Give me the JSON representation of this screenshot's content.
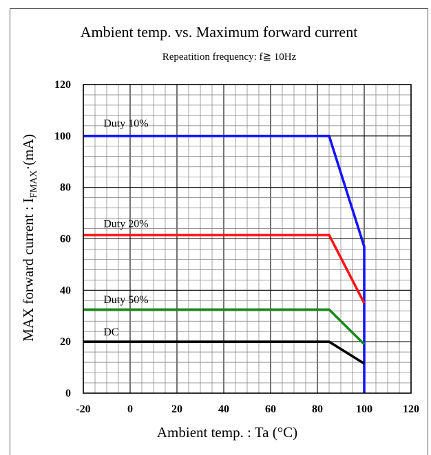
{
  "chart_data": {
    "type": "line",
    "title": "Ambient temp. vs. Maximum forward current",
    "subtitle": "Repeatition frequency: f≧ 10Hz",
    "xlabel": "Ambient temp. : Ta (°C)",
    "ylabel_main": "MAX forward current : I",
    "ylabel_sub": "FMAX",
    "ylabel_tail": "·(mA)",
    "xlim": [
      -20,
      120
    ],
    "ylim": [
      0,
      120
    ],
    "x_ticks": [
      -20,
      0,
      20,
      40,
      60,
      80,
      100,
      120
    ],
    "y_ticks": [
      0,
      20,
      40,
      60,
      80,
      100,
      120
    ],
    "grid": true,
    "minor_grid_step_x": 5,
    "minor_grid_step_y": 4,
    "series": [
      {
        "name": "Duty 10%",
        "color": "#1414ff",
        "x": [
          -20,
          85,
          100,
          100
        ],
        "y": [
          100,
          100,
          57,
          0
        ]
      },
      {
        "name": "Duty 20%",
        "color": "#ff1414",
        "x": [
          -20,
          85,
          100
        ],
        "y": [
          61.5,
          61.5,
          35
        ]
      },
      {
        "name": "Duty 50%",
        "color": "#168a16",
        "x": [
          -20,
          85,
          100
        ],
        "y": [
          32.5,
          32.5,
          19
        ]
      },
      {
        "name": "DC",
        "color": "#000000",
        "x": [
          -20,
          85,
          100
        ],
        "y": [
          20,
          20,
          11.5
        ]
      }
    ],
    "annotations": [
      {
        "text": "Duty 10%",
        "x": -12,
        "y": 103.5
      },
      {
        "text": "Duty 20%",
        "x": -12,
        "y": 64.5
      },
      {
        "text": "Duty 50%",
        "x": -12,
        "y": 35
      },
      {
        "text": "DC",
        "x": -12,
        "y": 22.5
      }
    ]
  }
}
